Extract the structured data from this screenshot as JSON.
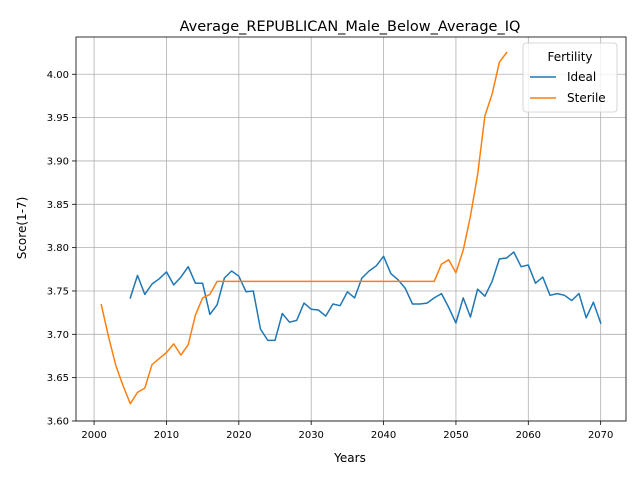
{
  "chart_data": {
    "type": "line",
    "title": "Average_REPUBLICAN_Male_Below_Average_IQ",
    "xlabel": "Years",
    "ylabel": "Score(1-7)",
    "xlim": [
      1997.5,
      2073.5
    ],
    "ylim": [
      3.6,
      4.043
    ],
    "grid": true,
    "x_ticks": [
      2000,
      2010,
      2020,
      2030,
      2040,
      2050,
      2060,
      2070
    ],
    "y_ticks": [
      3.6,
      3.65,
      3.7,
      3.75,
      3.8,
      3.85,
      3.9,
      3.95,
      4.0
    ],
    "x_tick_labels": [
      "2000",
      "2010",
      "2020",
      "2030",
      "2040",
      "2050",
      "2060",
      "2070"
    ],
    "y_tick_labels": [
      "3.60",
      "3.65",
      "3.70",
      "3.75",
      "3.80",
      "3.85",
      "3.90",
      "3.95",
      "4.00"
    ],
    "legend": {
      "title": "Fertility",
      "position": "top-right"
    },
    "series": [
      {
        "name": "Ideal",
        "color": "#1f77b4",
        "x": [
          2005,
          2006,
          2007,
          2008,
          2009,
          2010,
          2011,
          2012,
          2013,
          2014,
          2015,
          2016,
          2017,
          2018,
          2019,
          2020,
          2021,
          2022,
          2023,
          2024,
          2025,
          2026,
          2027,
          2028,
          2029,
          2030,
          2031,
          2032,
          2033,
          2034,
          2035,
          2036,
          2037,
          2038,
          2039,
          2040,
          2041,
          2042,
          2043,
          2044,
          2045,
          2046,
          2047,
          2048,
          2049,
          2050,
          2051,
          2052,
          2053,
          2054,
          2055,
          2056,
          2057,
          2058,
          2059,
          2060,
          2061,
          2062,
          2063,
          2064,
          2065,
          2066,
          2067,
          2068,
          2069,
          2070
        ],
        "values": [
          3.742,
          3.768,
          3.746,
          3.758,
          3.764,
          3.772,
          3.757,
          3.766,
          3.778,
          3.759,
          3.759,
          3.723,
          3.734,
          3.765,
          3.773,
          3.767,
          3.749,
          3.75,
          3.706,
          3.693,
          3.693,
          3.724,
          3.714,
          3.716,
          3.736,
          3.729,
          3.728,
          3.721,
          3.735,
          3.733,
          3.749,
          3.742,
          3.765,
          3.773,
          3.779,
          3.79,
          3.77,
          3.763,
          3.753,
          3.735,
          3.735,
          3.736,
          3.742,
          3.747,
          3.731,
          3.713,
          3.742,
          3.72,
          3.752,
          3.744,
          3.761,
          3.787,
          3.788,
          3.795,
          3.778,
          3.78,
          3.759,
          3.766,
          3.745,
          3.747,
          3.745,
          3.739,
          3.747,
          3.719,
          3.737,
          3.713
        ]
      },
      {
        "name": "Sterile",
        "color": "#ff7f0e",
        "x": [
          2001,
          2002,
          2003,
          2004,
          2005,
          2006,
          2007,
          2008,
          2009,
          2010,
          2011,
          2012,
          2013,
          2014,
          2015,
          2016,
          2017,
          2018,
          2019,
          2020,
          2021,
          2022,
          2023,
          2024,
          2025,
          2026,
          2027,
          2028,
          2029,
          2030,
          2031,
          2032,
          2033,
          2034,
          2035,
          2036,
          2037,
          2038,
          2039,
          2040,
          2041,
          2042,
          2043,
          2044,
          2045,
          2046,
          2047,
          2048,
          2049,
          2050,
          2051,
          2052,
          2053,
          2054,
          2055,
          2056,
          2057
        ],
        "values": [
          3.734,
          3.697,
          3.664,
          3.641,
          3.62,
          3.633,
          3.638,
          3.665,
          3.672,
          3.679,
          3.689,
          3.676,
          3.688,
          3.722,
          3.742,
          3.746,
          3.761,
          3.761,
          3.761,
          3.761,
          3.761,
          3.761,
          3.761,
          3.761,
          3.761,
          3.761,
          3.761,
          3.761,
          3.761,
          3.761,
          3.761,
          3.761,
          3.761,
          3.761,
          3.761,
          3.761,
          3.761,
          3.761,
          3.761,
          3.761,
          3.761,
          3.761,
          3.761,
          3.761,
          3.761,
          3.761,
          3.761,
          3.781,
          3.786,
          3.771,
          3.797,
          3.836,
          3.884,
          3.952,
          3.977,
          4.014,
          4.025
        ]
      }
    ]
  }
}
